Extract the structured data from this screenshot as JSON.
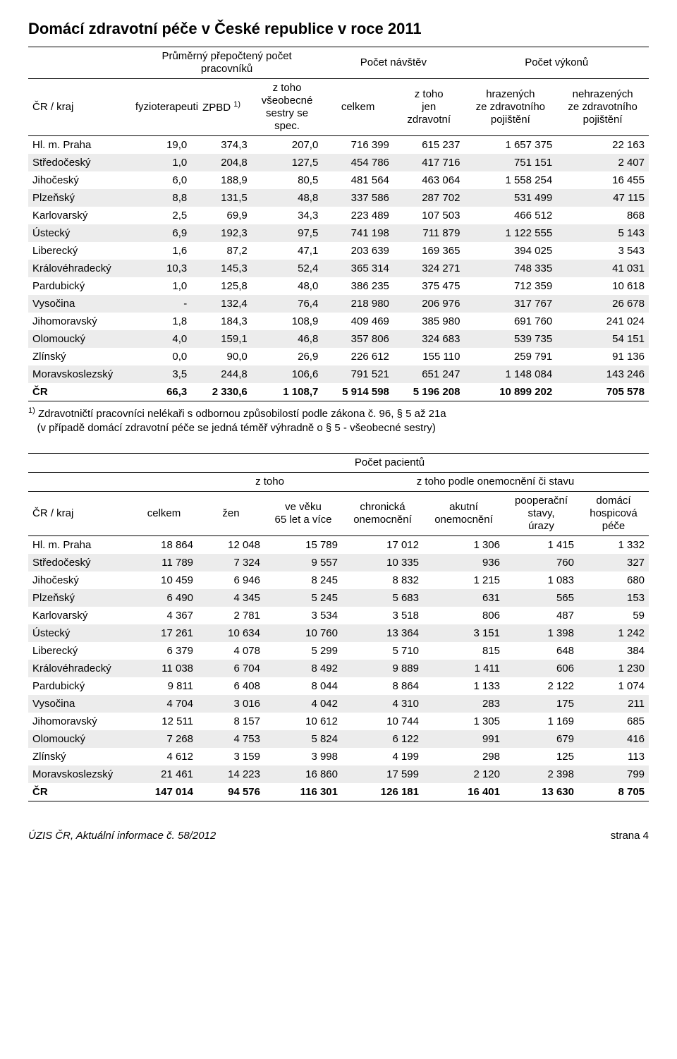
{
  "title": "Domácí zdravotní péče v České republice v roce 2011",
  "table1": {
    "header_group1": [
      "Průměrný přepočtený počet pracovníků",
      "Počet návštěv",
      "Počet výkonů"
    ],
    "row_label": "ČR / kraj",
    "header_cols": [
      "fyzioterapeuti",
      "ZPBD 1)",
      "z toho všeobecné sestry se spec.",
      "celkem",
      "z toho jen zdravotní",
      "hrazených ze zdravotního pojištění",
      "nehrazených ze zdravotního pojištění"
    ],
    "rows": [
      {
        "label": "Hl. m. Praha",
        "vals": [
          "19,0",
          "374,3",
          "207,0",
          "716 399",
          "615 237",
          "1 657 375",
          "22 163"
        ]
      },
      {
        "label": "Středočeský",
        "vals": [
          "1,0",
          "204,8",
          "127,5",
          "454 786",
          "417 716",
          "751 151",
          "2 407"
        ],
        "shade": true
      },
      {
        "label": "Jihočeský",
        "vals": [
          "6,0",
          "188,9",
          "80,5",
          "481 564",
          "463 064",
          "1 558 254",
          "16 455"
        ]
      },
      {
        "label": "Plzeňský",
        "vals": [
          "8,8",
          "131,5",
          "48,8",
          "337 586",
          "287 702",
          "531 499",
          "47 115"
        ],
        "shade": true
      },
      {
        "label": "Karlovarský",
        "vals": [
          "2,5",
          "69,9",
          "34,3",
          "223 489",
          "107 503",
          "466 512",
          "868"
        ]
      },
      {
        "label": "Ústecký",
        "vals": [
          "6,9",
          "192,3",
          "97,5",
          "741 198",
          "711 879",
          "1 122 555",
          "5 143"
        ],
        "shade": true
      },
      {
        "label": "Liberecký",
        "vals": [
          "1,6",
          "87,2",
          "47,1",
          "203 639",
          "169 365",
          "394 025",
          "3 543"
        ]
      },
      {
        "label": "Královéhradecký",
        "vals": [
          "10,3",
          "145,3",
          "52,4",
          "365 314",
          "324 271",
          "748 335",
          "41 031"
        ],
        "shade": true
      },
      {
        "label": "Pardubický",
        "vals": [
          "1,0",
          "125,8",
          "48,0",
          "386 235",
          "375 475",
          "712 359",
          "10 618"
        ]
      },
      {
        "label": "Vysočina",
        "vals": [
          "- ",
          "132,4",
          "76,4",
          "218 980",
          "206 976",
          "317 767",
          "26 678"
        ],
        "shade": true
      },
      {
        "label": "Jihomoravský",
        "vals": [
          "1,8",
          "184,3",
          "108,9",
          "409 469",
          "385 980",
          "691 760",
          "241 024"
        ]
      },
      {
        "label": "Olomoucký",
        "vals": [
          "4,0",
          "159,1",
          "46,8",
          "357 806",
          "324 683",
          "539 735",
          "54 151"
        ],
        "shade": true
      },
      {
        "label": "Zlínský",
        "vals": [
          "0,0",
          "90,0",
          "26,9",
          "226 612",
          "155 110",
          "259 791",
          "91 136"
        ]
      },
      {
        "label": "Moravskoslezský",
        "vals": [
          "3,5",
          "244,8",
          "106,6",
          "791 521",
          "651 247",
          "1 148 084",
          "143 246"
        ],
        "shade": true
      },
      {
        "label": "ČR",
        "vals": [
          "66,3",
          "2 330,6",
          "1 108,7",
          "5 914 598",
          "5 196 208",
          "10 899 202",
          "705 578"
        ],
        "bold": true
      }
    ]
  },
  "footnote_line1": "1) Zdravotničtí pracovníci nelékaři s odbornou způsobilostí podle zákona č. 96, § 5 až 21a",
  "footnote_line2": "(v případě domácí zdravotní péče se jedná téměř výhradně o § 5 - všeobecné sestry)",
  "table2": {
    "header_top": "Počet pacientů",
    "header_sub": [
      "z toho",
      "z toho podle onemocnění či stavu"
    ],
    "row_label": "ČR / kraj",
    "header_cols": [
      "celkem",
      "žen",
      "ve věku 65 let a více",
      "chronická onemocnění",
      "akutní onemocnění",
      "pooperační stavy, úrazy",
      "domácí hospicová péče"
    ],
    "rows": [
      {
        "label": "Hl. m. Praha",
        "vals": [
          "18 864",
          "12 048",
          "15 789",
          "17 012",
          "1 306",
          "1 415",
          "1 332"
        ]
      },
      {
        "label": "Středočeský",
        "vals": [
          "11 789",
          "7 324",
          "9 557",
          "10 335",
          "936",
          "760",
          "327"
        ],
        "shade": true
      },
      {
        "label": "Jihočeský",
        "vals": [
          "10 459",
          "6 946",
          "8 245",
          "8 832",
          "1 215",
          "1 083",
          "680"
        ]
      },
      {
        "label": "Plzeňský",
        "vals": [
          "6 490",
          "4 345",
          "5 245",
          "5 683",
          "631",
          "565",
          "153"
        ],
        "shade": true
      },
      {
        "label": "Karlovarský",
        "vals": [
          "4 367",
          "2 781",
          "3 534",
          "3 518",
          "806",
          "487",
          "59"
        ]
      },
      {
        "label": "Ústecký",
        "vals": [
          "17 261",
          "10 634",
          "10 760",
          "13 364",
          "3 151",
          "1 398",
          "1 242"
        ],
        "shade": true
      },
      {
        "label": "Liberecký",
        "vals": [
          "6 379",
          "4 078",
          "5 299",
          "5 710",
          "815",
          "648",
          "384"
        ]
      },
      {
        "label": "Královéhradecký",
        "vals": [
          "11 038",
          "6 704",
          "8 492",
          "9 889",
          "1 411",
          "606",
          "1 230"
        ],
        "shade": true
      },
      {
        "label": "Pardubický",
        "vals": [
          "9 811",
          "6 408",
          "8 044",
          "8 864",
          "1 133",
          "2 122",
          "1 074"
        ]
      },
      {
        "label": "Vysočina",
        "vals": [
          "4 704",
          "3 016",
          "4 042",
          "4 310",
          "283",
          "175",
          "211"
        ],
        "shade": true
      },
      {
        "label": "Jihomoravský",
        "vals": [
          "12 511",
          "8 157",
          "10 612",
          "10 744",
          "1 305",
          "1 169",
          "685"
        ]
      },
      {
        "label": "Olomoucký",
        "vals": [
          "7 268",
          "4 753",
          "5 824",
          "6 122",
          "991",
          "679",
          "416"
        ],
        "shade": true
      },
      {
        "label": "Zlínský",
        "vals": [
          "4 612",
          "3 159",
          "3 998",
          "4 199",
          "298",
          "125",
          "113"
        ]
      },
      {
        "label": "Moravskoslezský",
        "vals": [
          "21 461",
          "14 223",
          "16 860",
          "17 599",
          "2 120",
          "2 398",
          "799"
        ],
        "shade": true
      },
      {
        "label": "ČR",
        "vals": [
          "147 014",
          "94 576",
          "116 301",
          "126 181",
          "16 401",
          "13 630",
          "8 705"
        ],
        "bold": true
      }
    ]
  },
  "footer_left": "ÚZIS ČR, Aktuální informace č. 58/2012",
  "footer_right": "strana 4"
}
